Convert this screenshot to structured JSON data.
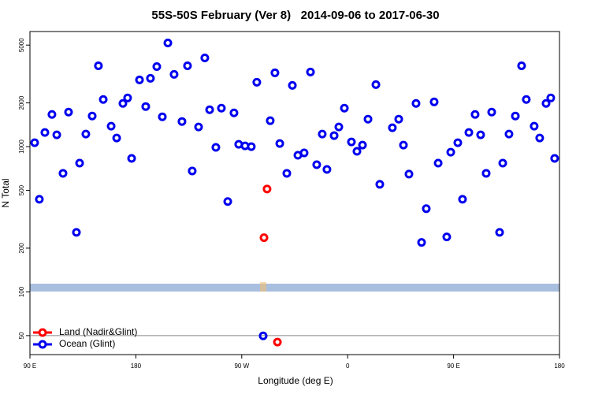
{
  "chart_data": {
    "type": "scatter",
    "title": "55S-50S February (Ver 8)   2014-09-06 to 2017-06-30",
    "x_label": "Longitude (deg E)",
    "y_label": "N Total",
    "log_y": true,
    "legend": "lower left",
    "xlim": [
      90,
      540
    ],
    "xticks": [
      {
        "value": 90,
        "label": "90 E"
      },
      180,
      {
        "value": 270,
        "label": "90 W"
      },
      {
        "value": 360,
        "label": "0"
      },
      {
        "value": 450,
        "label": "90 E"
      },
      {
        "value": 540,
        "label": "180"
      }
    ],
    "ylim": [
      37,
      6200
    ],
    "yticks": [
      50,
      100,
      200,
      500,
      1000,
      2000,
      5000
    ],
    "series": [
      {
        "name": "Land (Nadir&Glint)",
        "color": "#ff0000",
        "x": [
          291.5,
          288.9,
          300.3
        ],
        "values": [
          511,
          236,
          45.1
        ]
      },
      {
        "name": "Ocean (Glint)",
        "color": "#0000ee",
        "x": [
          94.0,
          98.0,
          102.7,
          108.7,
          112.8,
          118.1,
          122.8,
          129.5,
          132.2,
          137.5,
          142.9,
          148.2,
          152.3,
          159.0,
          163.7,
          169.0,
          173.0,
          176.4,
          183.1,
          188.4,
          192.4,
          197.8,
          202.5,
          207.2,
          212.5,
          219.2,
          223.9,
          227.9,
          233.3,
          238.6,
          242.7,
          248.0,
          252.7,
          258.1,
          263.4,
          267.4,
          272.8,
          278.1,
          282.8,
          288.2,
          294.2,
          298.2,
          302.3,
          308.3,
          313.0,
          317.7,
          323.0,
          328.4,
          333.7,
          338.4,
          342.4,
          348.5,
          352.5,
          357.2,
          363.2,
          367.9,
          372.6,
          377.3,
          384.0,
          387.3,
          398.0,
          403.4,
          407.4,
          412.1,
          418.1,
          422.8,
          426.8,
          433.5,
          436.9,
          444.2,
          447.6,
          453.6,
          457.6,
          463.0,
          468.3,
          473.0,
          477.7,
          482.4,
          489.1,
          491.8,
          497.1,
          502.5,
          507.8,
          511.8,
          518.5,
          523.2,
          528.6,
          532.6,
          535.9
        ],
        "values": [
          1064,
          434,
          1251,
          1666,
          1205,
          655,
          1729,
          257,
          770,
          1220,
          1625,
          3603,
          2110,
          1382,
          1146,
          1983,
          2163,
          830,
          2879,
          1888,
          2952,
          3558,
          1604,
          5173,
          3143,
          1489,
          3603,
          680,
          1365,
          4081,
          1795,
          988,
          1841,
          419,
          1708,
          1038,
          1012,
          1000,
          2775,
          49.8,
          1508,
          3221,
          1051,
          655,
          2640,
          872,
          905,
          3264,
          751,
          1220,
          697,
          1191,
          1365,
          1841,
          1077,
          929,
          1025,
          1546,
          2673,
          550,
          1349,
          1546,
          1025,
          647,
          1983,
          219,
          374,
          2032,
          770,
          239,
          916,
          1064,
          434,
          1251,
          1666,
          1205,
          655,
          1729,
          257,
          770,
          1220,
          1625,
          3603,
          2110,
          1382,
          1146,
          1983,
          2163,
          830
        ]
      }
    ]
  }
}
